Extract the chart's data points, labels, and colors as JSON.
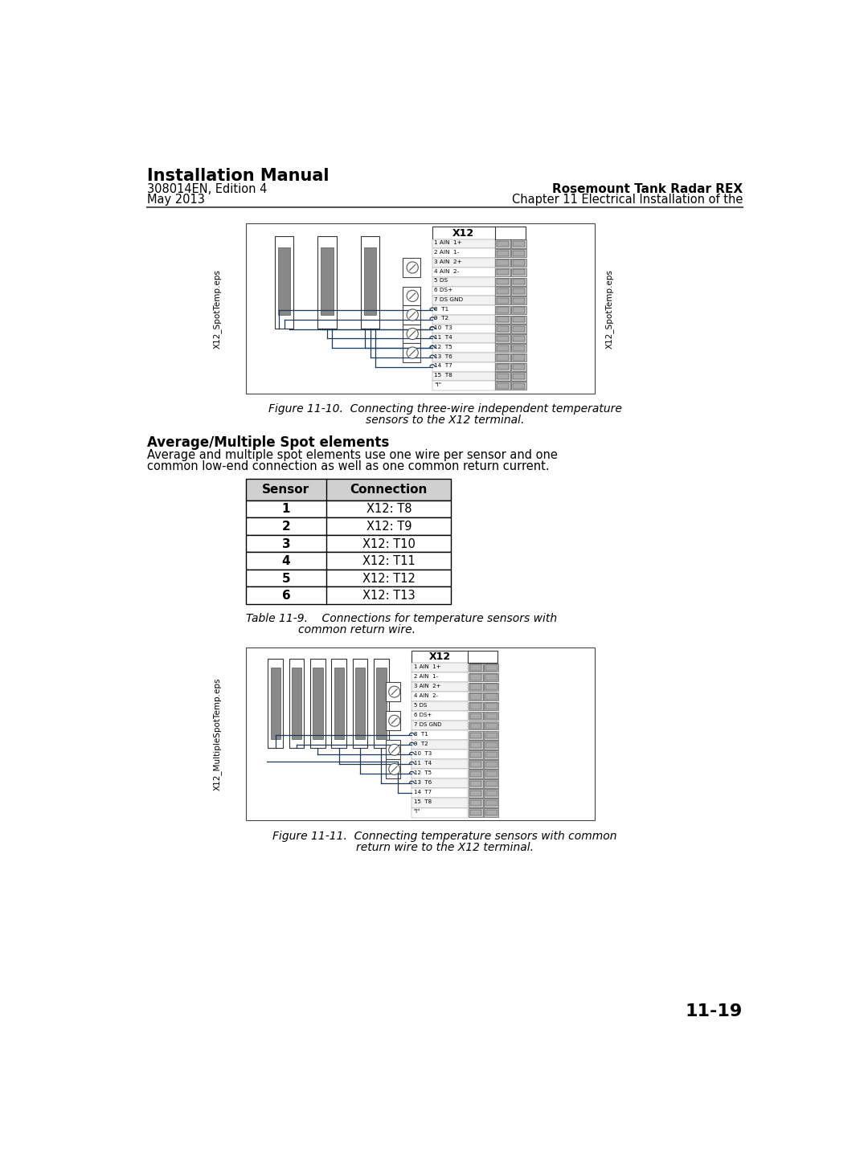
{
  "page_title": "Installation Manual",
  "subtitle1": "308014EN, Edition 4",
  "subtitle2": "May 2013",
  "right_title": "Rosemount Tank Radar REX",
  "right_subtitle": "Chapter 11 Electrical Installation of the",
  "fig1_caption_line1": "Figure 11-10.  Connecting three-wire independent temperature",
  "fig1_caption_line2": "sensors to the X12 terminal.",
  "section_title": "Average/Multiple Spot elements",
  "section_body_line1": "Average and multiple spot elements use one wire per sensor and one",
  "section_body_line2": "common low-end connection as well as one common return current.",
  "table_header": [
    "Sensor",
    "Connection"
  ],
  "table_rows": [
    [
      "1",
      "X12: T8"
    ],
    [
      "2",
      "X12: T9"
    ],
    [
      "3",
      "X12: T10"
    ],
    [
      "4",
      "X12: T11"
    ],
    [
      "5",
      "X12: T12"
    ],
    [
      "6",
      "X12: T13"
    ]
  ],
  "table_caption_line1": "Table 11-9.    Connections for temperature sensors with",
  "table_caption_line2": "common return wire.",
  "fig2_caption_line1": "Figure 11-11.  Connecting temperature sensors with common",
  "fig2_caption_line2": "return wire to the X12 terminal.",
  "page_number": "11-19",
  "x12_labels": [
    "1 AIN  1+",
    "2 AIN  1-",
    "3 AIN  2+",
    "4 AIN  2-",
    "5 DS",
    "6 DS+",
    "7 DS GND",
    "8  T1",
    "9  T2",
    "10  T3",
    "11  T4",
    "12  T5",
    "13  T6",
    "14  T7",
    "15  T8",
    "\"I\""
  ],
  "sidebar1": "X12_SpotTemp.eps",
  "sidebar2": "X12_MultipleSpotTemp.eps",
  "bg_color": "#ffffff",
  "sensor_color": "#888888",
  "wire_color": "#1a3a5c",
  "border_color": "#2a2a3a",
  "term_label_color": "#000000",
  "connector_color": "#b0b0b0",
  "connector_dark": "#888888"
}
